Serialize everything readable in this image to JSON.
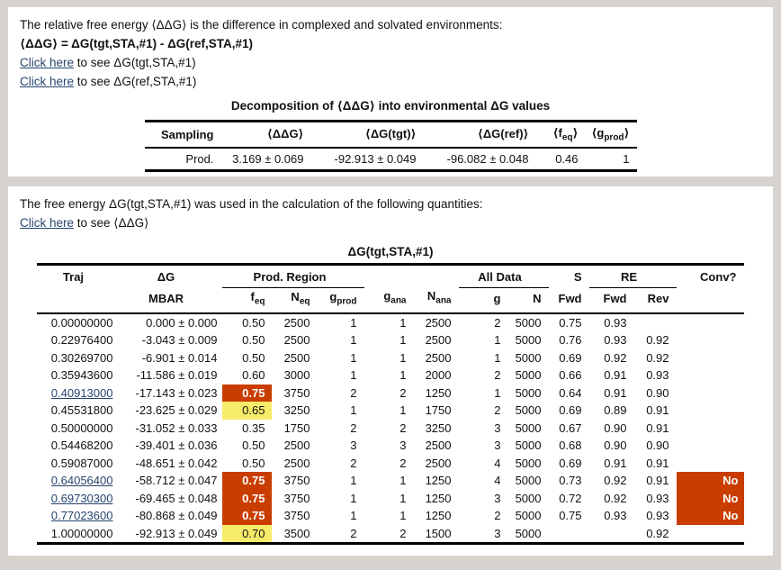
{
  "colors": {
    "page_background": "#d7d3cf",
    "panel_background": "#ffffff",
    "link": "#27456e",
    "highlight_orange": "#c93e00",
    "highlight_yellow": "#f6ec6a"
  },
  "panel1": {
    "intro": "The relative free energy ⟨ΔΔG⟩ is the difference in complexed and solvated environments:",
    "equation": "⟨ΔΔG⟩ = ΔG(tgt,STA,#1) - ΔG(ref,STA,#1)",
    "link1": {
      "text": "Click here",
      "suffix": " to see ΔG(tgt,STA,#1)"
    },
    "link2": {
      "text": "Click here",
      "suffix": " to see ΔG(ref,STA,#1)"
    },
    "table": {
      "title": "Decomposition of ⟨ΔΔG⟩ into environmental ΔG values",
      "headers": {
        "sampling": "Sampling",
        "ddg": "⟨ΔΔG⟩",
        "dg_tgt": "⟨ΔG(tgt)⟩",
        "dg_ref": "⟨ΔG(ref)⟩",
        "feq_pre": "⟨f",
        "feq_sub": "eq",
        "feq_post": "⟩",
        "gprod_pre": "⟨g",
        "gprod_sub": "prod",
        "gprod_post": "⟩"
      },
      "row": {
        "sampling": "Prod.",
        "ddg": "3.169 ± 0.069",
        "dg_tgt": "-92.913 ± 0.049",
        "dg_ref": "-96.082 ± 0.048",
        "feq": "0.46",
        "gprod": "1"
      }
    }
  },
  "panel2": {
    "intro": "The free energy ΔG(tgt,STA,#1) was used in the calculation of the following quantities:",
    "link1": {
      "text": "Click here",
      "suffix": " to see ⟨ΔΔG⟩"
    },
    "table": {
      "title": "ΔG(tgt,STA,#1)",
      "group_headers": {
        "traj": "Traj",
        "dg": "ΔG",
        "prod_region": "Prod. Region",
        "all_data": "All Data",
        "s": "S",
        "re": "RE",
        "conv": "Conv?"
      },
      "sub_headers": {
        "mbar": "MBAR",
        "feq_base": "f",
        "feq_sub": "eq",
        "neq_base": "N",
        "neq_sub": "eq",
        "gprod_base": "g",
        "gprod_sub": "prod",
        "gana_base": "g",
        "gana_sub": "ana",
        "nana_base": "N",
        "nana_sub": "ana",
        "g": "g",
        "n": "N",
        "s_fwd": "Fwd",
        "re_fwd": "Fwd",
        "re_rev": "Rev"
      },
      "rows": [
        {
          "traj": "0.00000000",
          "link": false,
          "dg": "0.000 ± 0.000",
          "feq": "0.50",
          "feq_hl": null,
          "neq": "2500",
          "gprod": "1",
          "gana": "1",
          "nana": "2500",
          "g": "2",
          "n": "5000",
          "s_fwd": "0.75",
          "re_fwd": "0.93",
          "re_rev": "",
          "conv": "",
          "conv_hl": null
        },
        {
          "traj": "0.22976400",
          "link": false,
          "dg": "-3.043 ± 0.009",
          "feq": "0.50",
          "feq_hl": null,
          "neq": "2500",
          "gprod": "1",
          "gana": "1",
          "nana": "2500",
          "g": "1",
          "n": "5000",
          "s_fwd": "0.76",
          "re_fwd": "0.93",
          "re_rev": "0.92",
          "conv": "",
          "conv_hl": null
        },
        {
          "traj": "0.30269700",
          "link": false,
          "dg": "-6.901 ± 0.014",
          "feq": "0.50",
          "feq_hl": null,
          "neq": "2500",
          "gprod": "1",
          "gana": "1",
          "nana": "2500",
          "g": "1",
          "n": "5000",
          "s_fwd": "0.69",
          "re_fwd": "0.92",
          "re_rev": "0.92",
          "conv": "",
          "conv_hl": null
        },
        {
          "traj": "0.35943600",
          "link": false,
          "dg": "-11.586 ± 0.019",
          "feq": "0.60",
          "feq_hl": null,
          "neq": "3000",
          "gprod": "1",
          "gana": "1",
          "nana": "2000",
          "g": "2",
          "n": "5000",
          "s_fwd": "0.66",
          "re_fwd": "0.91",
          "re_rev": "0.93",
          "conv": "",
          "conv_hl": null
        },
        {
          "traj": "0.40913000",
          "link": true,
          "dg": "-17.143 ± 0.023",
          "feq": "0.75",
          "feq_hl": "orange",
          "neq": "3750",
          "gprod": "2",
          "gana": "2",
          "nana": "1250",
          "g": "1",
          "n": "5000",
          "s_fwd": "0.64",
          "re_fwd": "0.91",
          "re_rev": "0.90",
          "conv": "",
          "conv_hl": null
        },
        {
          "traj": "0.45531800",
          "link": false,
          "dg": "-23.625 ± 0.029",
          "feq": "0.65",
          "feq_hl": "yellow",
          "neq": "3250",
          "gprod": "1",
          "gana": "1",
          "nana": "1750",
          "g": "2",
          "n": "5000",
          "s_fwd": "0.69",
          "re_fwd": "0.89",
          "re_rev": "0.91",
          "conv": "",
          "conv_hl": null
        },
        {
          "traj": "0.50000000",
          "link": false,
          "dg": "-31.052 ± 0.033",
          "feq": "0.35",
          "feq_hl": null,
          "neq": "1750",
          "gprod": "2",
          "gana": "2",
          "nana": "3250",
          "g": "3",
          "n": "5000",
          "s_fwd": "0.67",
          "re_fwd": "0.90",
          "re_rev": "0.91",
          "conv": "",
          "conv_hl": null
        },
        {
          "traj": "0.54468200",
          "link": false,
          "dg": "-39.401 ± 0.036",
          "feq": "0.50",
          "feq_hl": null,
          "neq": "2500",
          "gprod": "3",
          "gana": "3",
          "nana": "2500",
          "g": "3",
          "n": "5000",
          "s_fwd": "0.68",
          "re_fwd": "0.90",
          "re_rev": "0.90",
          "conv": "",
          "conv_hl": null
        },
        {
          "traj": "0.59087000",
          "link": false,
          "dg": "-48.651 ± 0.042",
          "feq": "0.50",
          "feq_hl": null,
          "neq": "2500",
          "gprod": "2",
          "gana": "2",
          "nana": "2500",
          "g": "4",
          "n": "5000",
          "s_fwd": "0.69",
          "re_fwd": "0.91",
          "re_rev": "0.91",
          "conv": "",
          "conv_hl": null
        },
        {
          "traj": "0.64056400",
          "link": true,
          "dg": "-58.712 ± 0.047",
          "feq": "0.75",
          "feq_hl": "orange",
          "neq": "3750",
          "gprod": "1",
          "gana": "1",
          "nana": "1250",
          "g": "4",
          "n": "5000",
          "s_fwd": "0.73",
          "re_fwd": "0.92",
          "re_rev": "0.91",
          "conv": "No",
          "conv_hl": "orange"
        },
        {
          "traj": "0.69730300",
          "link": true,
          "dg": "-69.465 ± 0.048",
          "feq": "0.75",
          "feq_hl": "orange",
          "neq": "3750",
          "gprod": "1",
          "gana": "1",
          "nana": "1250",
          "g": "3",
          "n": "5000",
          "s_fwd": "0.72",
          "re_fwd": "0.92",
          "re_rev": "0.93",
          "conv": "No",
          "conv_hl": "orange"
        },
        {
          "traj": "0.77023600",
          "link": true,
          "dg": "-80.868 ± 0.049",
          "feq": "0.75",
          "feq_hl": "orange",
          "neq": "3750",
          "gprod": "1",
          "gana": "1",
          "nana": "1250",
          "g": "2",
          "n": "5000",
          "s_fwd": "0.75",
          "re_fwd": "0.93",
          "re_rev": "0.93",
          "conv": "No",
          "conv_hl": "orange"
        },
        {
          "traj": "1.00000000",
          "link": false,
          "dg": "-92.913 ± 0.049",
          "feq": "0.70",
          "feq_hl": "yellow",
          "neq": "3500",
          "gprod": "2",
          "gana": "2",
          "nana": "1500",
          "g": "3",
          "n": "5000",
          "s_fwd": "",
          "re_fwd": "",
          "re_rev": "0.92",
          "conv": "",
          "conv_hl": null
        }
      ]
    }
  }
}
